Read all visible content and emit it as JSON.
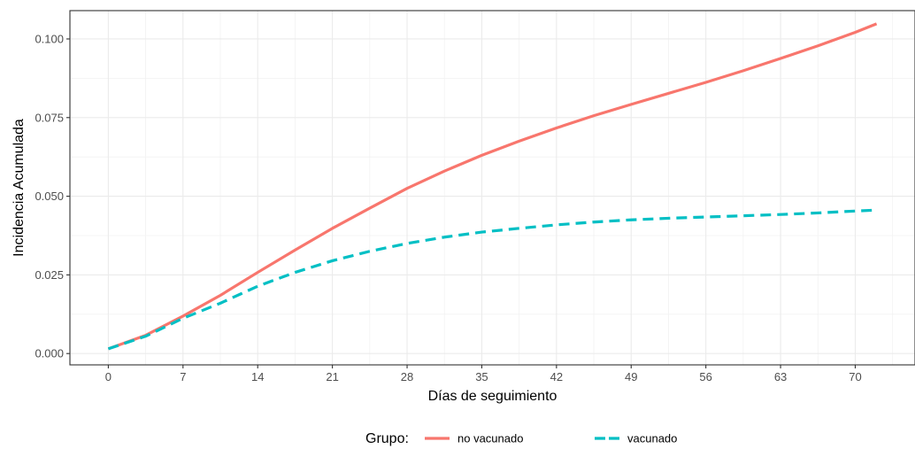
{
  "chart_data": {
    "type": "line",
    "xlabel": "Días de seguimiento",
    "ylabel": "Incidencia Acumulada",
    "xlim": [
      -3.6,
      75.6
    ],
    "ylim": [
      -0.0036,
      0.109
    ],
    "x_ticks": [
      0,
      7,
      14,
      21,
      28,
      35,
      42,
      49,
      56,
      63,
      70
    ],
    "x_tick_labels": [
      "0",
      "7",
      "14",
      "21",
      "28",
      "35",
      "42",
      "49",
      "56",
      "63",
      "70"
    ],
    "y_ticks": [
      0.0,
      0.025,
      0.05,
      0.075,
      0.1
    ],
    "y_tick_labels": [
      "0.000",
      "0.025",
      "0.050",
      "0.075",
      "0.100"
    ],
    "grid": true,
    "legend": {
      "title": "Grupo:",
      "position": "bottom"
    },
    "series": [
      {
        "name": "no vacunado",
        "color": "#F8766D",
        "style": "solid",
        "x": [
          0,
          3.5,
          7,
          10.5,
          14,
          17.5,
          21,
          24.5,
          28,
          31.5,
          35,
          38.5,
          42,
          45.5,
          49,
          52.5,
          56,
          59.5,
          63,
          66.5,
          70,
          72
        ],
        "y": [
          0.0015,
          0.0058,
          0.0119,
          0.0185,
          0.0258,
          0.0329,
          0.0398,
          0.0462,
          0.0525,
          0.058,
          0.063,
          0.0675,
          0.0717,
          0.0756,
          0.0792,
          0.0827,
          0.0862,
          0.0899,
          0.0938,
          0.0978,
          0.1021,
          0.1048
        ]
      },
      {
        "name": "vacunado",
        "color": "#00BFC4",
        "style": "dashed",
        "x": [
          0,
          3.5,
          7,
          10.5,
          14,
          17.5,
          21,
          24.5,
          28,
          31.5,
          35,
          38.5,
          42,
          45.5,
          49,
          52.5,
          56,
          59.5,
          63,
          66.5,
          70,
          72
        ],
        "y": [
          0.0015,
          0.0055,
          0.0112,
          0.016,
          0.0214,
          0.0258,
          0.0295,
          0.0325,
          0.035,
          0.037,
          0.0386,
          0.0398,
          0.0409,
          0.0418,
          0.0425,
          0.043,
          0.0434,
          0.0438,
          0.0442,
          0.0447,
          0.0453,
          0.0456
        ]
      }
    ]
  }
}
